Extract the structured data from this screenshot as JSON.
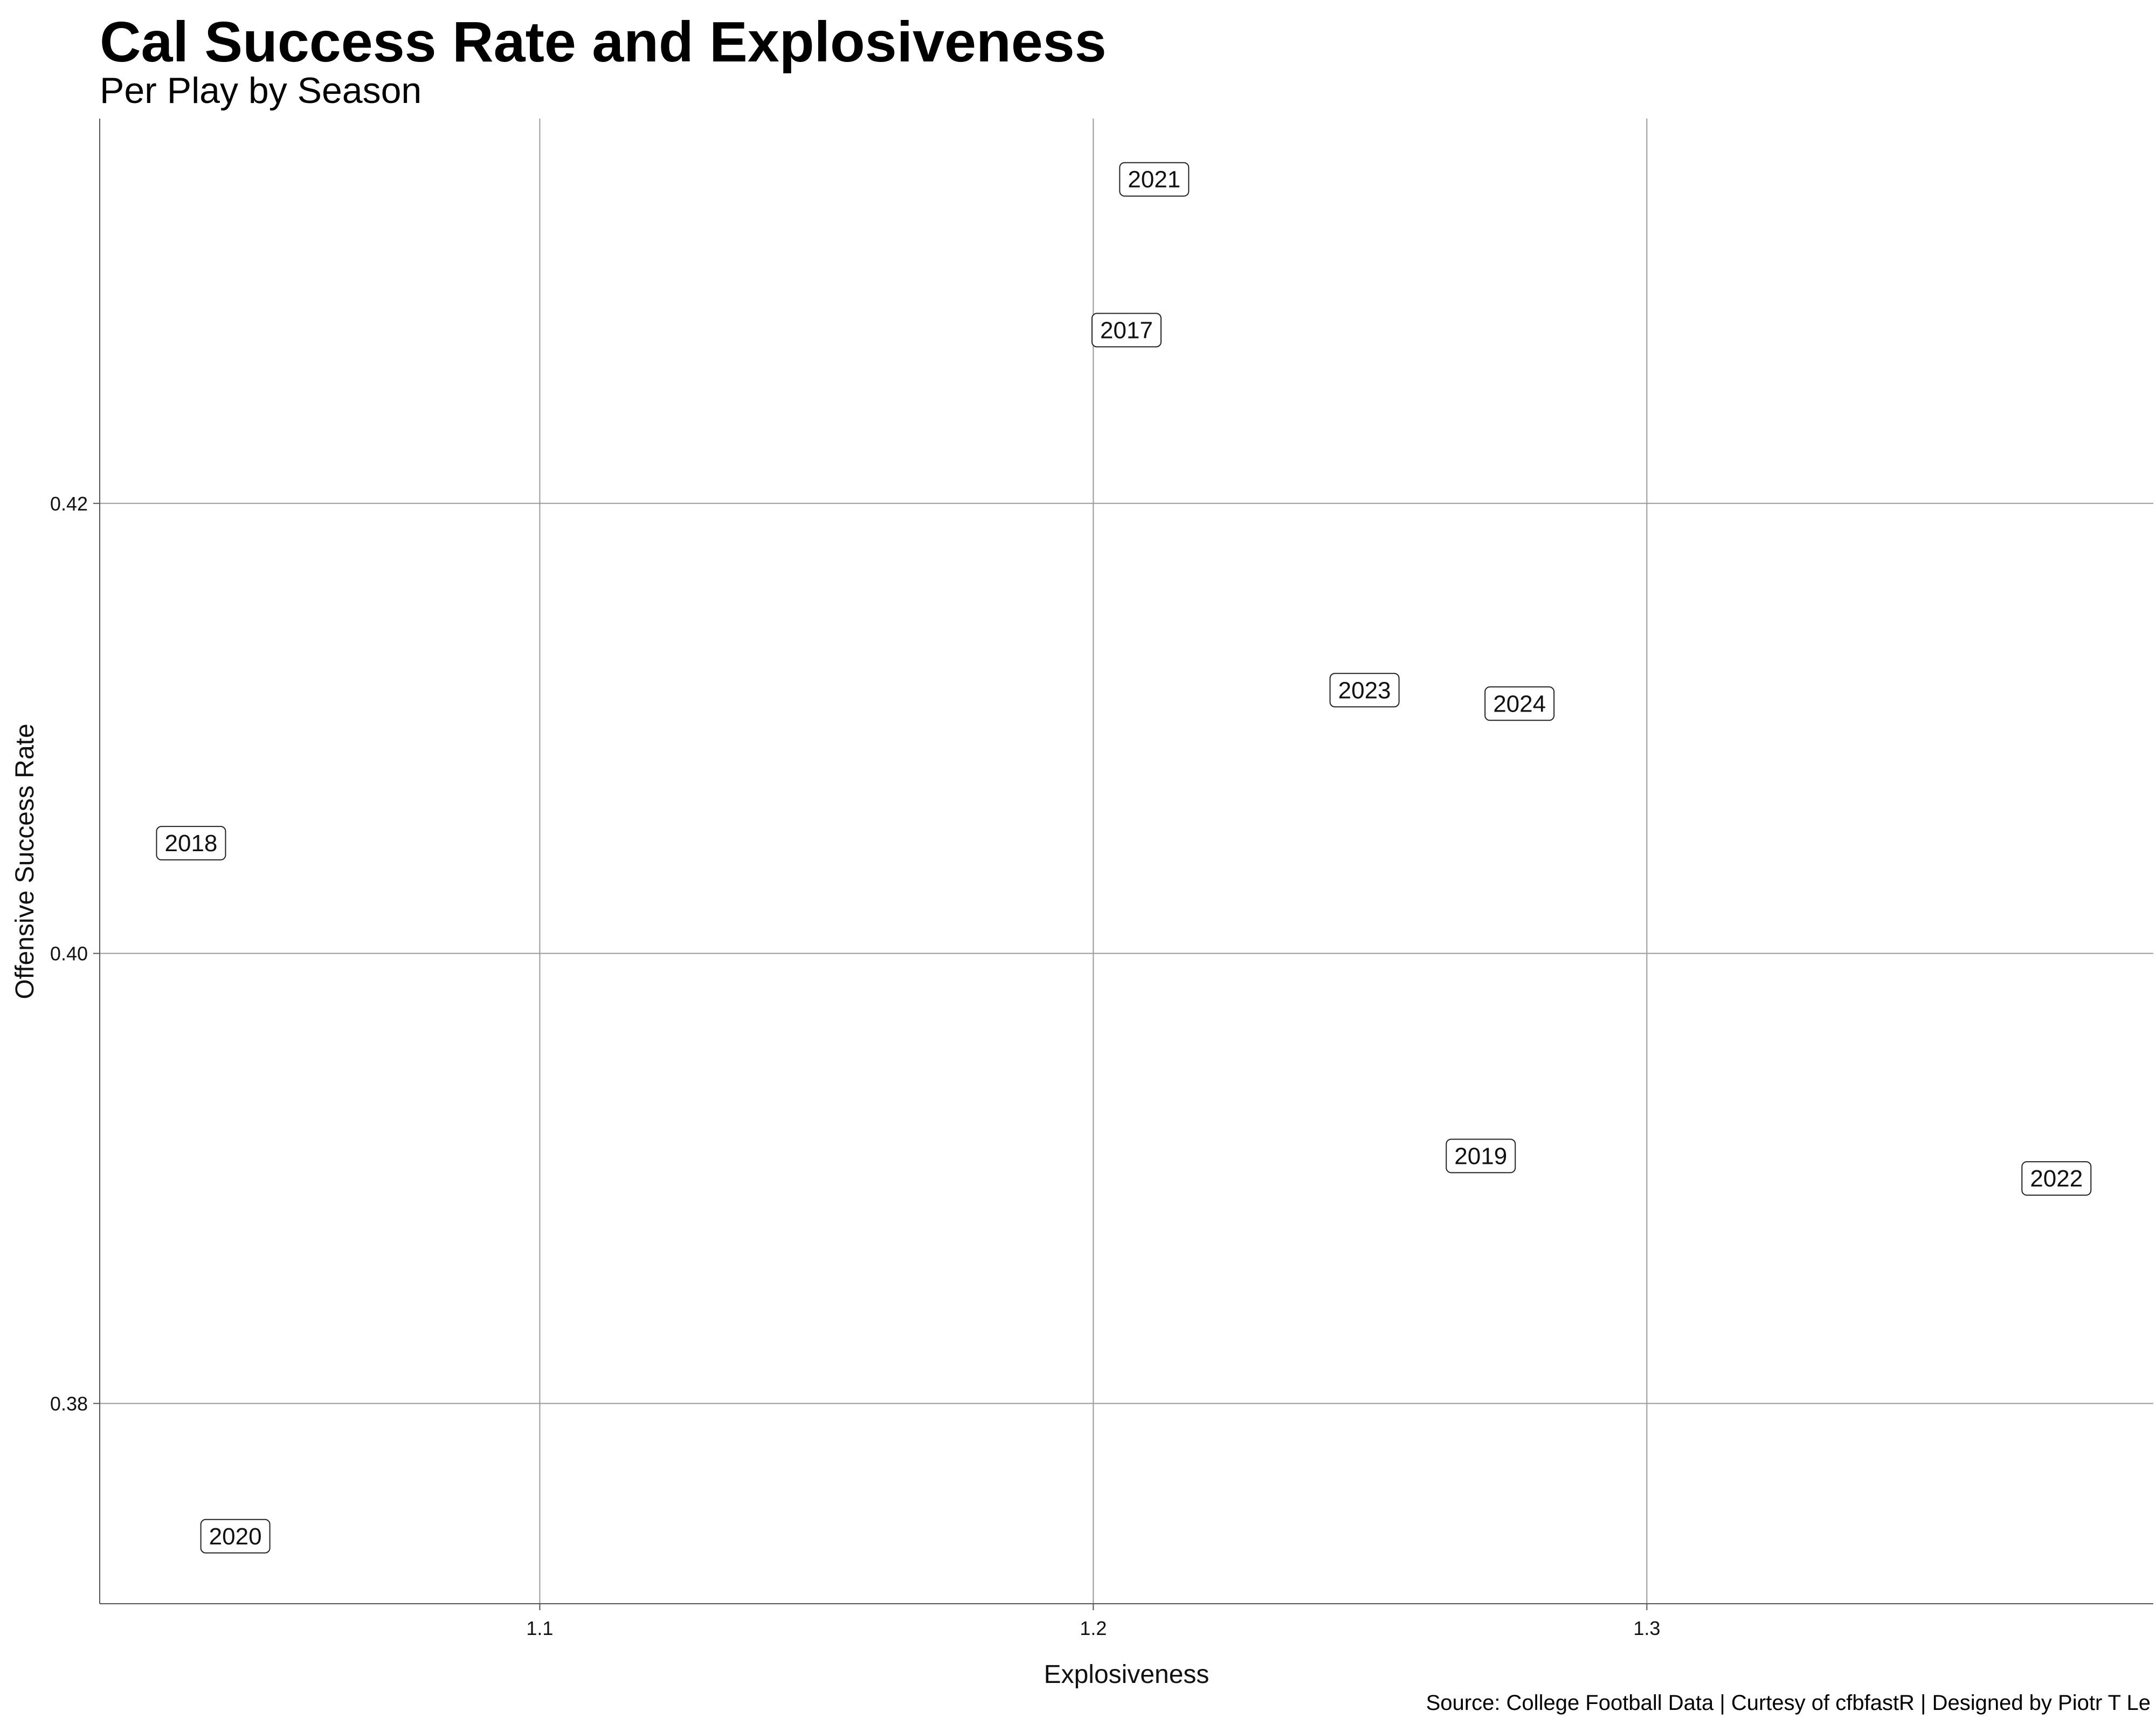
{
  "chart_data": {
    "type": "scatter",
    "title": "Cal Success Rate and Explosiveness",
    "subtitle": "Per Play by Season",
    "xlabel": "Explosiveness",
    "ylabel": "Offensive Success Rate",
    "caption": "Source: College Football Data | Curtesy of cfbfastR | Designed by Piotr T Le",
    "xlim": [
      1.0205,
      1.3915
    ],
    "ylim": [
      0.3711,
      0.4371
    ],
    "x_ticks": [
      1.1,
      1.2,
      1.3
    ],
    "x_tick_labels": [
      "1.1",
      "1.2",
      "1.3"
    ],
    "y_ticks": [
      0.38,
      0.4,
      0.42
    ],
    "y_tick_labels": [
      "0.38",
      "0.40",
      "0.42"
    ],
    "grid": true,
    "points": [
      {
        "label": "2017",
        "x": 1.206,
        "y": 0.4277
      },
      {
        "label": "2018",
        "x": 1.037,
        "y": 0.4049
      },
      {
        "label": "2019",
        "x": 1.27,
        "y": 0.391
      },
      {
        "label": "2020",
        "x": 1.045,
        "y": 0.3741
      },
      {
        "label": "2021",
        "x": 1.211,
        "y": 0.4344
      },
      {
        "label": "2022",
        "x": 1.374,
        "y": 0.39
      },
      {
        "label": "2023",
        "x": 1.249,
        "y": 0.4117
      },
      {
        "label": "2024",
        "x": 1.277,
        "y": 0.4111
      }
    ]
  }
}
